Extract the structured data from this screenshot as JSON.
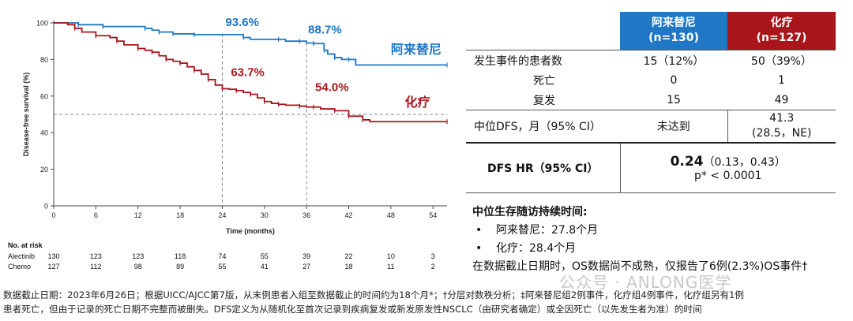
{
  "chart_data": {
    "type": "line",
    "ylabel": "Disease-free survival (%)",
    "xlabel": "Time (months)",
    "xlim": [
      0,
      56
    ],
    "ylim": [
      0,
      100
    ],
    "xticks": [
      0,
      6,
      12,
      18,
      24,
      30,
      36,
      42,
      48,
      54
    ],
    "yticks": [
      0,
      20,
      40,
      60,
      80,
      100
    ],
    "series": [
      {
        "name": "阿来替尼",
        "color": "#1f77c5",
        "points": [
          [
            0,
            100
          ],
          [
            3,
            100
          ],
          [
            3.5,
            99
          ],
          [
            6,
            99
          ],
          [
            7,
            98
          ],
          [
            12,
            98
          ],
          [
            13,
            97
          ],
          [
            14,
            96
          ],
          [
            15,
            95
          ],
          [
            16,
            95
          ],
          [
            17,
            94
          ],
          [
            18,
            94
          ],
          [
            20,
            93.6
          ],
          [
            26,
            93.6
          ],
          [
            27,
            92
          ],
          [
            28,
            91
          ],
          [
            32,
            91
          ],
          [
            33,
            90
          ],
          [
            35,
            90
          ],
          [
            36,
            89
          ],
          [
            37,
            88.7
          ],
          [
            38,
            88.7
          ],
          [
            38.5,
            85
          ],
          [
            39,
            83
          ],
          [
            40,
            81
          ],
          [
            41,
            80
          ],
          [
            42,
            80
          ],
          [
            43,
            77
          ],
          [
            56,
            77
          ]
        ]
      },
      {
        "name": "化疗",
        "color": "#a8161c",
        "points": [
          [
            0,
            100
          ],
          [
            2,
            99
          ],
          [
            3,
            97
          ],
          [
            4,
            95
          ],
          [
            6,
            93
          ],
          [
            8,
            92
          ],
          [
            9,
            90
          ],
          [
            10,
            88
          ],
          [
            12,
            86
          ],
          [
            13,
            85
          ],
          [
            14,
            84
          ],
          [
            15,
            82
          ],
          [
            16,
            80
          ],
          [
            17,
            79
          ],
          [
            18,
            78
          ],
          [
            19,
            76
          ],
          [
            20,
            74
          ],
          [
            21,
            72
          ],
          [
            22,
            69
          ],
          [
            23,
            66
          ],
          [
            24,
            64
          ],
          [
            25,
            63.7
          ],
          [
            26,
            63
          ],
          [
            27,
            62
          ],
          [
            28,
            61
          ],
          [
            29,
            59
          ],
          [
            30,
            57
          ],
          [
            31,
            56
          ],
          [
            32,
            55.5
          ],
          [
            33,
            55
          ],
          [
            35,
            54.5
          ],
          [
            36,
            54
          ],
          [
            37,
            54
          ],
          [
            38,
            53
          ],
          [
            40,
            52
          ],
          [
            41,
            52
          ],
          [
            42,
            49
          ],
          [
            43,
            49
          ],
          [
            44,
            47
          ],
          [
            45,
            46
          ],
          [
            56,
            46
          ]
        ]
      }
    ],
    "annotations": [
      "93.6%",
      "88.7%",
      "63.7%",
      "54.0%"
    ],
    "grid": false
  },
  "risk_table": {
    "title": "No. at risk",
    "rows": [
      {
        "label": "Alectinib",
        "values": [
          "130",
          "123",
          "123",
          "118",
          "74",
          "55",
          "39",
          "22",
          "10",
          "3"
        ]
      },
      {
        "label": "Chemo",
        "values": [
          "127",
          "112",
          "98",
          "89",
          "55",
          "41",
          "27",
          "18",
          "11",
          "2"
        ]
      }
    ]
  },
  "stats_table": {
    "col1_header_a": "阿来替尼",
    "col1_header_b": "(n=130)",
    "col2_header_a": "化疗",
    "col2_header_b": "(n=127)",
    "row_events_label": "发生事件的患者数",
    "row_events_v1": "15（12%）",
    "row_events_v2": "50（39%）",
    "row_death_label": "死亡",
    "row_death_v1": "0",
    "row_death_v2": "1",
    "row_relapse_label": "复发",
    "row_relapse_v1": "15",
    "row_relapse_v2": "49",
    "row_median_label": "中位DFS，月（95% CI）",
    "row_median_v1": "未达到",
    "row_median_v2a": "41.3",
    "row_median_v2b": "(28.5，NE)",
    "row_hr_label": "DFS HR（95% CI）",
    "row_hr_value": "0.24",
    "row_hr_ci": "（0.13，0.43）",
    "row_hr_p": "p* < 0.0001"
  },
  "followup": {
    "heading": "中位生存随访持续时间:",
    "item1": "阿来替尼：27.8个月",
    "item2": "化疗：28.4个月",
    "note": "在数据截止日期时，OS数据尚不成熟，仅报告了6例(2.3%)OS事件†"
  },
  "footnote": {
    "line1": "数据截止日期：2023年6月26日；根据UICC/AJCC第7版，从末例患者入组至数据截止的时间约为18个月*；†分层对数秩分析；‡阿来替尼组2例事件，化疗组4例事件，化疗组另有1例",
    "line2": "患者死亡，但由于记录的死亡日期不完整而被删失。DFS定义为从随机化至首次记录到疾病复发或新发原发性NSCLC（由研究者确定）或全因死亡（以先发生者为准）的时间"
  },
  "watermark": "公众号 · ANLONG医学"
}
